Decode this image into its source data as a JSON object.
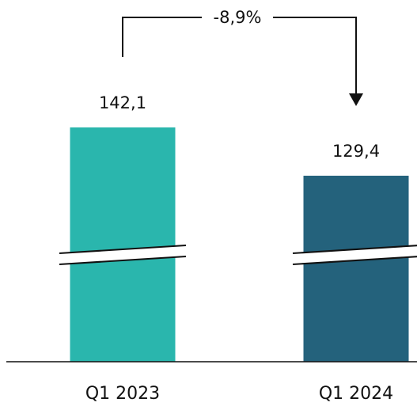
{
  "chart_data": {
    "type": "bar",
    "categories": [
      "Q1 2023",
      "Q1 2024"
    ],
    "values": [
      142.1,
      129.4
    ],
    "value_labels": [
      "142,1",
      "129,4"
    ],
    "colors": [
      "#2ab6ad",
      "#24627c"
    ],
    "axis_break": true,
    "change_label": "-8,9%",
    "title": "",
    "xlabel": "",
    "ylabel": ""
  }
}
